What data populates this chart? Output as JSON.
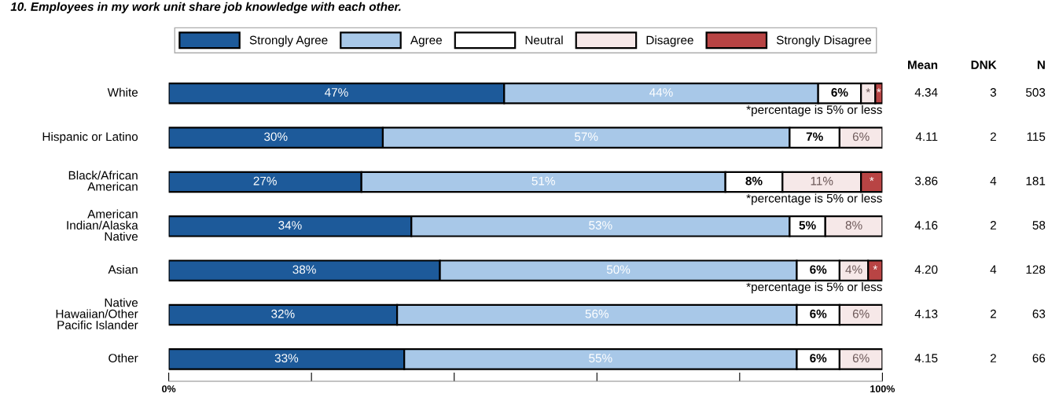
{
  "chart_data": [
    {
      "type": "bar",
      "orientation": "horizontal",
      "stacked": true,
      "title": "10. Employees in my work unit share job knowledge with each other.",
      "categories": [
        "White",
        "Hispanic or Latino",
        "Black/African\nAmerican",
        "American\nIndian/Alaska\nNative",
        "Asian",
        "Native\nHawaiian/Other\nPacific Islander",
        "Other"
      ],
      "series": [
        {
          "name": "Strongly Agree",
          "color": "#1d5a9a",
          "values": [
            47,
            30,
            27,
            34,
            38,
            32,
            33
          ],
          "value_labels": [
            "47%",
            "30%",
            "27%",
            "34%",
            "38%",
            "32%",
            "33%"
          ]
        },
        {
          "name": "Agree",
          "color": "#a8c8e8",
          "values": [
            44,
            57,
            51,
            53,
            50,
            56,
            55
          ],
          "value_labels": [
            "44%",
            "57%",
            "51%",
            "53%",
            "50%",
            "56%",
            "55%"
          ]
        },
        {
          "name": "Neutral",
          "color": "#ffffff",
          "values": [
            6,
            7,
            8,
            5,
            6,
            6,
            6
          ],
          "value_labels": [
            "6%",
            "7%",
            "8%",
            "5%",
            "6%",
            "6%",
            "6%"
          ]
        },
        {
          "name": "Disagree",
          "color": "#f6e8e8",
          "values": [
            2,
            6,
            11,
            8,
            4,
            6,
            6
          ],
          "value_labels": [
            "*",
            "6%",
            "11%",
            "8%",
            "4%",
            "6%",
            "6%"
          ]
        },
        {
          "name": "Strongly Disagree",
          "color": "#b84444",
          "values": [
            1,
            null,
            3,
            null,
            2,
            null,
            null
          ],
          "value_labels": [
            "*",
            null,
            "*",
            null,
            "*",
            null,
            null
          ]
        }
      ],
      "xlim": [
        0,
        100
      ],
      "xticks": [
        {
          "value": 0,
          "label": "0%"
        },
        {
          "value": 20,
          "label": null
        },
        {
          "value": 40,
          "label": null
        },
        {
          "value": 60,
          "label": null
        },
        {
          "value": 80,
          "label": null
        },
        {
          "value": 100,
          "label": "100%"
        }
      ],
      "legend": "top",
      "grid": false,
      "annotations": [
        "*percentage is 5% or less",
        "*percentage is 5% or less",
        "*percentage is 5% or less"
      ]
    },
    {
      "type": "other",
      "categories": [
        "Mean",
        "DNK",
        "N"
      ],
      "annotations": [
        "4.34",
        "3",
        "503",
        "4.11",
        "2",
        "115",
        "3.86",
        "4",
        "181",
        "4.16",
        "2",
        "58",
        "4.20",
        "4",
        "128",
        "4.13",
        "2",
        "63",
        "4.15",
        "2",
        "66"
      ]
    }
  ]
}
